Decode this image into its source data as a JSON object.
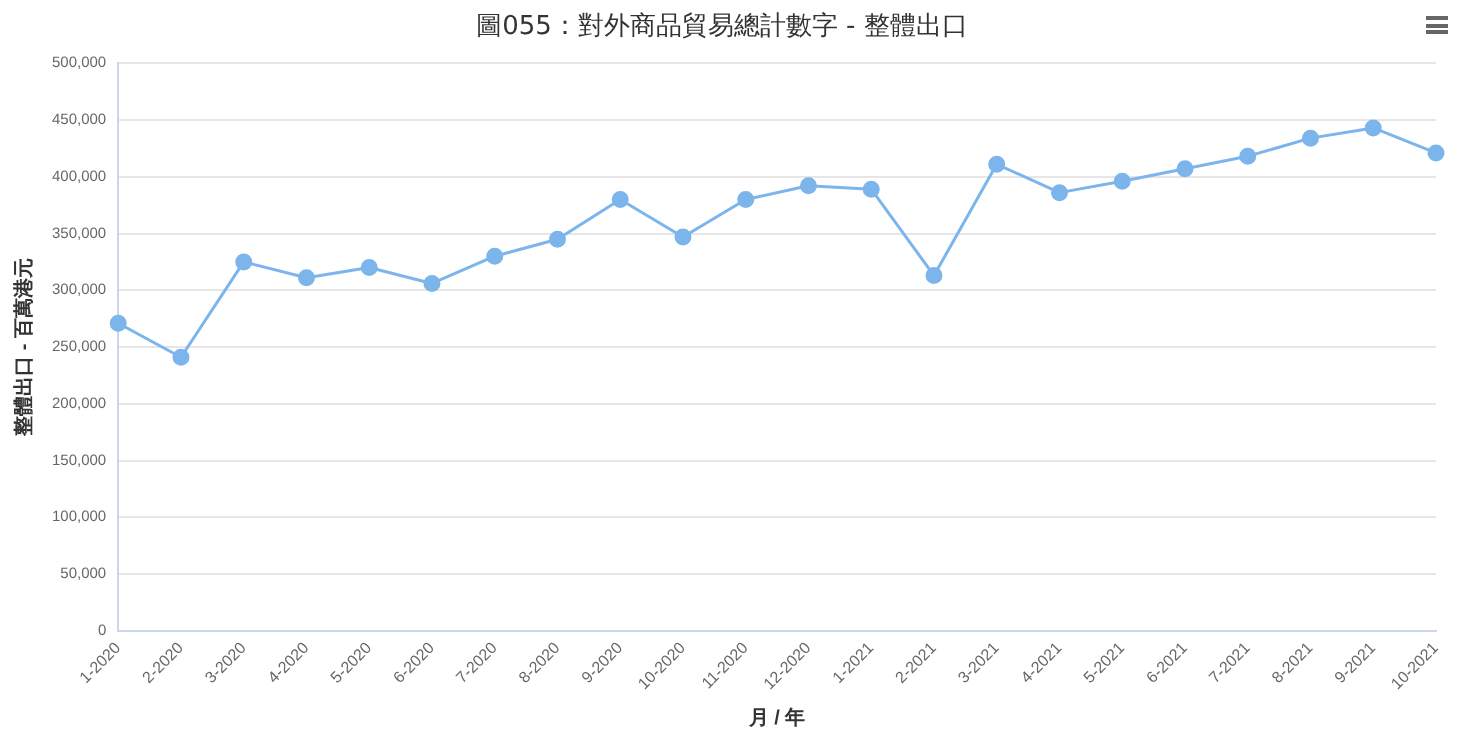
{
  "chart_data": {
    "type": "line",
    "title": "圖055：對外商品貿易總計數字 - 整體出口",
    "xlabel": "月 / 年",
    "ylabel": "整體出口 - 百萬港元",
    "categories": [
      "1-2020",
      "2-2020",
      "3-2020",
      "4-2020",
      "5-2020",
      "6-2020",
      "7-2020",
      "8-2020",
      "9-2020",
      "10-2020",
      "11-2020",
      "12-2020",
      "1-2021",
      "2-2021",
      "3-2021",
      "4-2021",
      "5-2021",
      "6-2021",
      "7-2021",
      "8-2021",
      "9-2021",
      "10-2021"
    ],
    "series": [
      {
        "color": "#7cb5ec",
        "values": [
          271000,
          241000,
          325000,
          311000,
          320000,
          306000,
          330000,
          345000,
          380000,
          347000,
          380000,
          392000,
          389000,
          313000,
          411000,
          386000,
          396000,
          407000,
          418000,
          434000,
          443000,
          421000
        ]
      }
    ],
    "ylim": [
      0,
      500000
    ],
    "yticks": [
      0,
      {
        "value": 50000,
        "label": "50,000"
      },
      {
        "value": 100000,
        "label": "100,000"
      },
      {
        "value": 150000,
        "label": "150,000"
      },
      {
        "value": 200000,
        "label": "200,000"
      },
      {
        "value": 250000,
        "label": "250,000"
      },
      {
        "value": 300000,
        "label": "300,000"
      },
      {
        "value": 350000,
        "label": "350,000"
      },
      {
        "value": 400000,
        "label": "400,000"
      },
      {
        "value": 450000,
        "label": "450,000"
      },
      {
        "value": 500000,
        "label": "500,000"
      }
    ],
    "grid": "y",
    "legend": false,
    "marker": "circle",
    "line_style": "solid"
  }
}
